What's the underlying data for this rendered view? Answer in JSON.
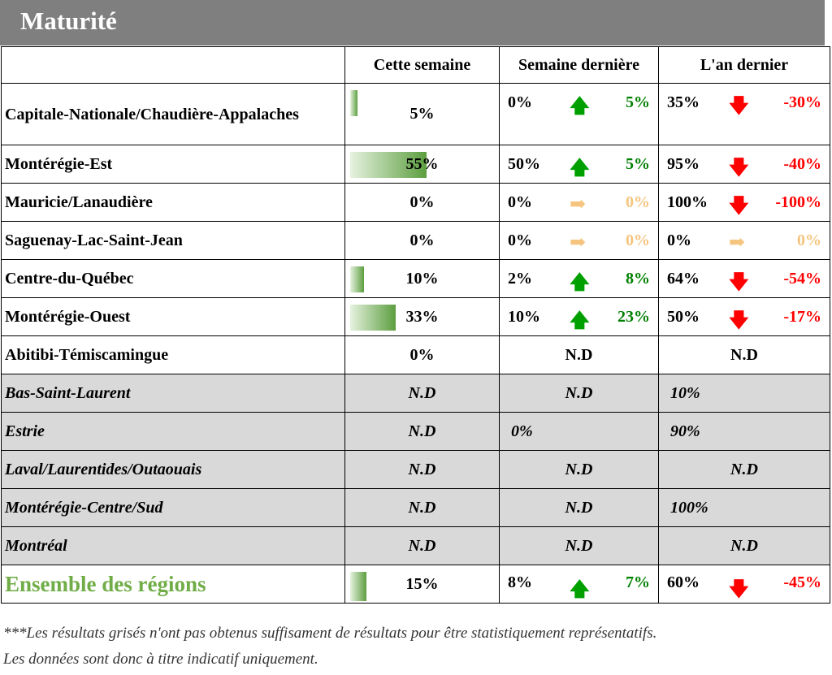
{
  "title": "Maturité",
  "headers": [
    "",
    "Cette semaine",
    "Semaine dernière",
    "L'an dernier"
  ],
  "colors": {
    "up": "#00a000",
    "down": "#ff0000",
    "flat": "#f5c57f",
    "total_label": "#70ad47",
    "grey_row": "#d9d9d9",
    "title_bar": "#7f7f7f"
  },
  "rows": [
    {
      "region": "Capitale-Nationale/Chaudière-Appalaches",
      "this_week": "5%",
      "this_week_fraction": 0.05,
      "last_week": "0%",
      "lw_trend": "up",
      "lw_diff": "5%",
      "last_year": "35%",
      "ly_trend": "down",
      "ly_diff": "-30%"
    },
    {
      "region": "Montérégie-Est",
      "this_week": "55%",
      "this_week_fraction": 0.55,
      "last_week": "50%",
      "lw_trend": "up",
      "lw_diff": "5%",
      "last_year": "95%",
      "ly_trend": "down",
      "ly_diff": "-40%"
    },
    {
      "region": "Mauricie/Lanaudière",
      "this_week": "0%",
      "this_week_fraction": 0,
      "last_week": "0%",
      "lw_trend": "flat",
      "lw_diff": "0%",
      "last_year": "100%",
      "ly_trend": "down",
      "ly_diff": "-100%"
    },
    {
      "region": "Saguenay-Lac-Saint-Jean",
      "this_week": "0%",
      "this_week_fraction": 0,
      "last_week": "0%",
      "lw_trend": "flat",
      "lw_diff": "0%",
      "last_year": "0%",
      "ly_trend": "flat",
      "ly_diff": "0%"
    },
    {
      "region": "Centre-du-Québec",
      "this_week": "10%",
      "this_week_fraction": 0.1,
      "last_week": "2%",
      "lw_trend": "up",
      "lw_diff": "8%",
      "last_year": "64%",
      "ly_trend": "down",
      "ly_diff": "-54%"
    },
    {
      "region": "Montérégie-Ouest",
      "this_week": "33%",
      "this_week_fraction": 0.33,
      "last_week": "10%",
      "lw_trend": "up",
      "lw_diff": "23%",
      "last_year": "50%",
      "ly_trend": "down",
      "ly_diff": "-17%"
    },
    {
      "region": "Abitibi-Témiscamingue",
      "this_week": "0%",
      "this_week_fraction": 0,
      "last_week_na": "N.D",
      "last_year_na": "N.D"
    },
    {
      "region": "Bas-Saint-Laurent",
      "grey": true,
      "this_week": "N.D",
      "last_week_na": "N.D",
      "last_year_only": "10%"
    },
    {
      "region": "Estrie",
      "grey": true,
      "this_week": "N.D",
      "last_week_only": "0%",
      "last_year_only": "90%"
    },
    {
      "region": "Laval/Laurentides/Outaouais",
      "grey": true,
      "this_week": "N.D",
      "last_week_na": "N.D",
      "last_year_na": "N.D"
    },
    {
      "region": "Montérégie-Centre/Sud",
      "grey": true,
      "this_week": "N.D",
      "last_week_na": "N.D",
      "last_year_only": "100%"
    },
    {
      "region": "Montréal",
      "grey": true,
      "this_week": "N.D",
      "last_week_na": "N.D",
      "last_year_na": "N.D"
    }
  ],
  "total": {
    "region": "Ensemble des régions",
    "this_week": "15%",
    "this_week_fraction": 0.15,
    "last_week": "8%",
    "lw_trend": "up",
    "lw_diff": "7%",
    "last_year": "60%",
    "ly_trend": "down",
    "ly_diff": "-45%"
  },
  "footnote_line1": "***Les résultats grisés n'ont pas obtenus suffisament de résultats pour être statistiquement représentatifs.",
  "footnote_line2": "Les données sont donc à titre indicatif uniquement."
}
